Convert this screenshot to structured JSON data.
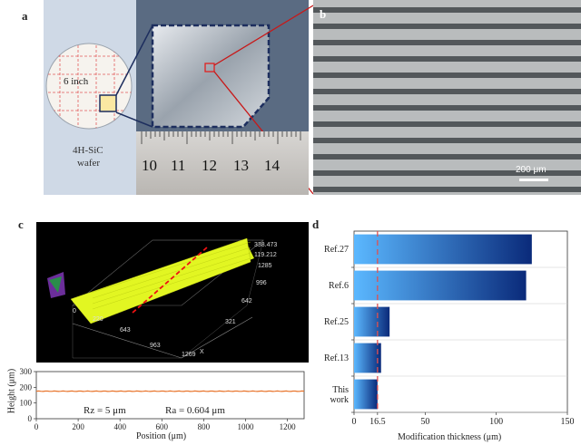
{
  "panels": {
    "a": "a",
    "b": "b",
    "c": "c",
    "d": "d"
  },
  "panel_a": {
    "inset_label": "6 inch",
    "wafer_label_line1": "4H-SiC",
    "wafer_label_line2": "wafer",
    "ruler_numbers": [
      "10",
      "11",
      "12",
      "13",
      "14"
    ]
  },
  "panel_b": {
    "scale_bar": "200 μm"
  },
  "panel_c": {
    "surface_axis_labels": [
      "338.473",
      "119.212",
      "1285",
      "996",
      "642",
      "321",
      "963",
      "643",
      "220",
      "0",
      "1269",
      "X"
    ],
    "line_plot": {
      "ylabel": "Height (μm)",
      "xlabel": "Position (μm)",
      "yticks": [
        "0",
        "100",
        "200",
        "300"
      ],
      "xticks": [
        "0",
        "200",
        "400",
        "600",
        "800",
        "1000",
        "1200"
      ],
      "rz_text": "Rz = 5 μm",
      "ra_text": "Ra = 0.604 μm",
      "profile_height": 175,
      "x_range": [
        0,
        1280
      ],
      "y_range": [
        0,
        300
      ],
      "line_color": "#e8732a"
    }
  },
  "chart_data": {
    "type": "bar",
    "orientation": "horizontal",
    "categories": [
      "Ref.27",
      "Ref.6",
      "Ref.25",
      "Ref.13",
      "This work"
    ],
    "values": [
      125,
      121,
      25,
      19,
      16.5
    ],
    "xlabel": "Modification thickness (μm)",
    "xlim": [
      0,
      150
    ],
    "xticks": [
      "0",
      "16.5",
      "50",
      "100",
      "150"
    ],
    "reference_line": 16.5,
    "bar_color_start": "#5bb8ff",
    "bar_color_end": "#0a2a7a",
    "ref_line_color": "#e05050"
  }
}
